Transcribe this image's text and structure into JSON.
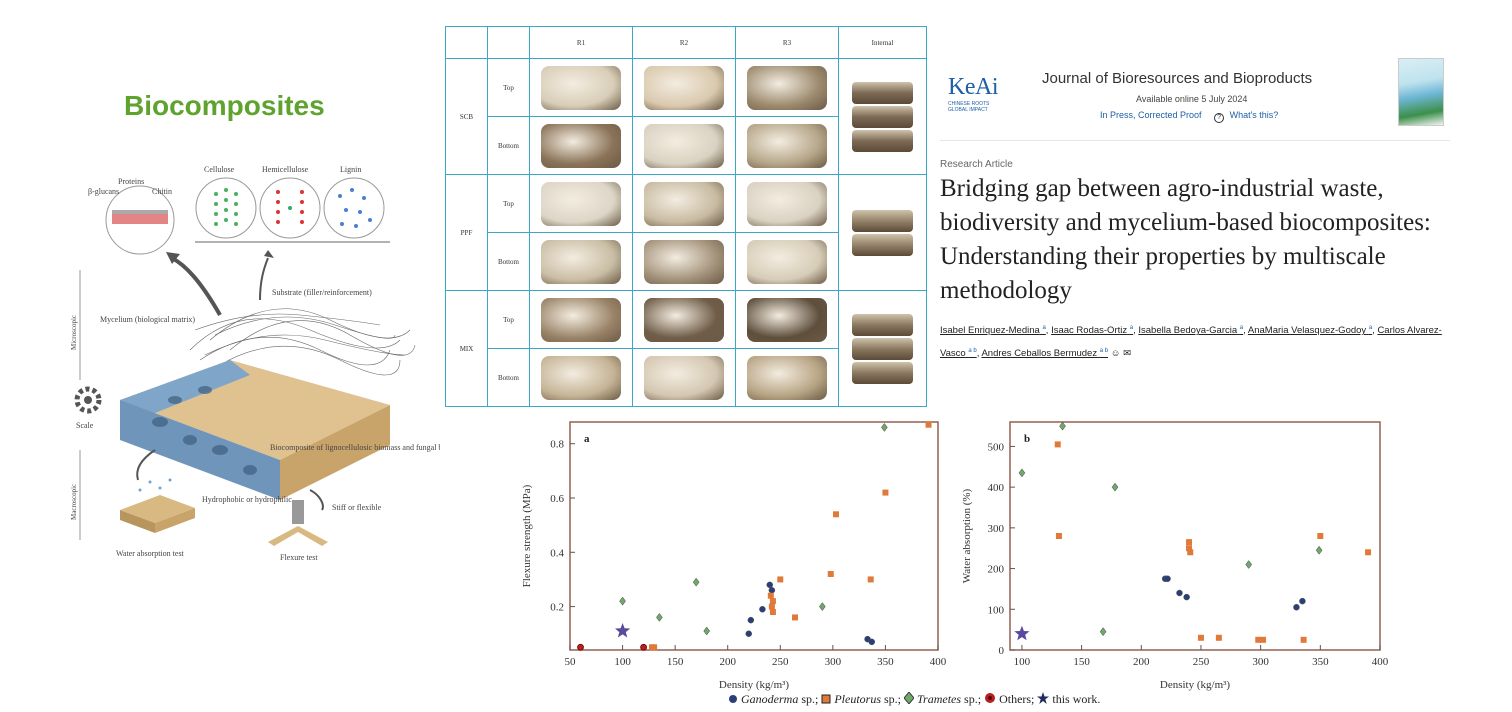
{
  "section_title": "Biocomposites",
  "schematic": {
    "labels": {
      "proteins": "Proteins",
      "beta_glucans": "β-glucans",
      "chitin": "Chitin",
      "cellulose": "Cellulose",
      "hemicellulose": "Hemicellulose",
      "lignin": "Lignin",
      "substrate": "Substrate (filler/reinforcement)",
      "mycelium": "Mycelium (biological matrix)",
      "microscopic": "Microscopic",
      "scale": "Scale",
      "macroscopic": "Macroscopic",
      "biocomposite": "Biocomposite of lignocellulosic biomass and fungal biomass",
      "hydrophobic": "Hydrophobic or hydrophilic",
      "stiff": "Stiff or flexible",
      "water_test": "Water absorption test",
      "flexure_test": "Flexure test"
    }
  },
  "sample_table": {
    "columns": [
      "R1",
      "R2",
      "R3",
      "Internal"
    ],
    "faces": [
      "Top",
      "Bottom"
    ],
    "groups": [
      {
        "name": "SCB",
        "colors": {
          "top": [
            "#d8cdb8",
            "#d9c9ae",
            "#9c8a6e"
          ],
          "bottom": [
            "#8a7358",
            "#d9d2c2",
            "#b5a688"
          ],
          "internal": "#7d6a55"
        }
      },
      {
        "name": "PPF",
        "colors": {
          "top": [
            "#ddd6c7",
            "#c8bba2",
            "#d9d1c1"
          ],
          "bottom": [
            "#c9bda4",
            "#a3927a",
            "#d6ccb7"
          ],
          "internal": "#95826a"
        }
      },
      {
        "name": "MIX",
        "colors": {
          "top": [
            "#9a8468",
            "#6f5d48",
            "#5e4e3c"
          ],
          "bottom": [
            "#c5b496",
            "#d4c7b1",
            "#b7a484"
          ],
          "internal": "#8a785f"
        }
      }
    ]
  },
  "journal": {
    "logo_mark": "KeAi",
    "logo_sub_1": "CHINESE ROOTS",
    "logo_sub_2": "GLOBAL IMPACT",
    "name": "Journal of Bioresources and Bioproducts",
    "available": "Available online 5 July 2024",
    "status": "In Press, Corrected Proof",
    "whats_this": "What's this?"
  },
  "article": {
    "type": "Research Article",
    "title": "Bridging gap between agro-industrial waste, biodiversity and mycelium-based biocomposites: Understanding their properties by multiscale methodology",
    "authors": [
      {
        "name": "Isabel Enriquez-Medina",
        "aff": "a"
      },
      {
        "name": "Isaac Rodas-Ortiz",
        "aff": "a"
      },
      {
        "name": "Isabella Bedoya-Garcia",
        "aff": "a"
      },
      {
        "name": "AnaMaria Velasquez-Godoy",
        "aff": "a"
      },
      {
        "name": "Carlos Alvarez-Vasco",
        "aff": "a b"
      },
      {
        "name": "Andres Ceballos Bermudez",
        "aff": "a b"
      }
    ]
  },
  "chart_data": [
    {
      "type": "scatter",
      "panel": "a",
      "xlabel": "Density (kg/m³)",
      "ylabel": "Flexure strength (MPa)",
      "xlim": [
        50,
        400
      ],
      "ylim": [
        0.04,
        0.88
      ],
      "xticks": [
        50,
        100,
        150,
        200,
        250,
        300,
        350,
        400
      ],
      "yticks": [
        0.2,
        0.4,
        0.6,
        0.8
      ],
      "series": [
        {
          "name": "Ganoderma sp.",
          "color": "#2a3f78",
          "shape": "circle",
          "points": [
            [
              220,
              0.1
            ],
            [
              222,
              0.15
            ],
            [
              233,
              0.19
            ],
            [
              240,
              0.28
            ],
            [
              242,
              0.26
            ],
            [
              333,
              0.08
            ],
            [
              337,
              0.07
            ]
          ]
        },
        {
          "name": "Pleutorus sp.",
          "color": "#e07a3a",
          "shape": "square",
          "points": [
            [
              128,
              0.05
            ],
            [
              130,
              0.05
            ],
            [
              241,
              0.24
            ],
            [
              243,
              0.22
            ],
            [
              242,
              0.2
            ],
            [
              243,
              0.18
            ],
            [
              250,
              0.3
            ],
            [
              264,
              0.16
            ],
            [
              298,
              0.32
            ],
            [
              303,
              0.54
            ],
            [
              336,
              0.3
            ],
            [
              350,
              0.62
            ],
            [
              391,
              0.87
            ]
          ]
        },
        {
          "name": "Trametes sp.",
          "color": "#6fa86a",
          "shape": "diamond",
          "points": [
            [
              100,
              0.22
            ],
            [
              135,
              0.16
            ],
            [
              170,
              0.29
            ],
            [
              180,
              0.11
            ],
            [
              290,
              0.2
            ],
            [
              349,
              0.86
            ]
          ]
        },
        {
          "name": "Others",
          "color": "#b32020",
          "shape": "flower",
          "points": [
            [
              60,
              0.05
            ],
            [
              120,
              0.05
            ]
          ]
        },
        {
          "name": "this work.",
          "color": "#5a4a9e",
          "shape": "star",
          "points": [
            [
              100,
              0.11
            ]
          ]
        }
      ]
    },
    {
      "type": "scatter",
      "panel": "b",
      "xlabel": "Density (kg/m³)",
      "ylabel": "Water absorption (%)",
      "xlim": [
        90,
        400
      ],
      "ylim": [
        0,
        560
      ],
      "xticks": [
        100,
        150,
        200,
        250,
        300,
        350,
        400
      ],
      "yticks": [
        0,
        100,
        200,
        300,
        400,
        500
      ],
      "series": [
        {
          "name": "Ganoderma sp.",
          "color": "#2a3f78",
          "shape": "circle",
          "points": [
            [
              220,
              175
            ],
            [
              222,
              175
            ],
            [
              232,
              140
            ],
            [
              238,
              130
            ],
            [
              330,
              105
            ],
            [
              335,
              120
            ]
          ]
        },
        {
          "name": "Pleutorus sp.",
          "color": "#e07a3a",
          "shape": "square",
          "points": [
            [
              130,
              505
            ],
            [
              131,
              280
            ],
            [
              240,
              265
            ],
            [
              240,
              250
            ],
            [
              241,
              240
            ],
            [
              250,
              30
            ],
            [
              265,
              30
            ],
            [
              298,
              25
            ],
            [
              302,
              25
            ],
            [
              336,
              25
            ],
            [
              350,
              280
            ],
            [
              390,
              240
            ]
          ]
        },
        {
          "name": "Trametes sp.",
          "color": "#6fa86a",
          "shape": "diamond",
          "points": [
            [
              100,
              435
            ],
            [
              134,
              550
            ],
            [
              168,
              45
            ],
            [
              178,
              400
            ],
            [
              290,
              210
            ],
            [
              349,
              245
            ]
          ]
        },
        {
          "name": "this work.",
          "color": "#5a4a9e",
          "shape": "star",
          "points": [
            [
              100,
              40
            ]
          ]
        }
      ]
    }
  ],
  "legend": {
    "ganoderma": "Ganoderma",
    "pleutorus": "Pleutorus",
    "trametes": "Trametes",
    "sp": "sp.;",
    "others": "Others;",
    "this_work": "this work."
  }
}
